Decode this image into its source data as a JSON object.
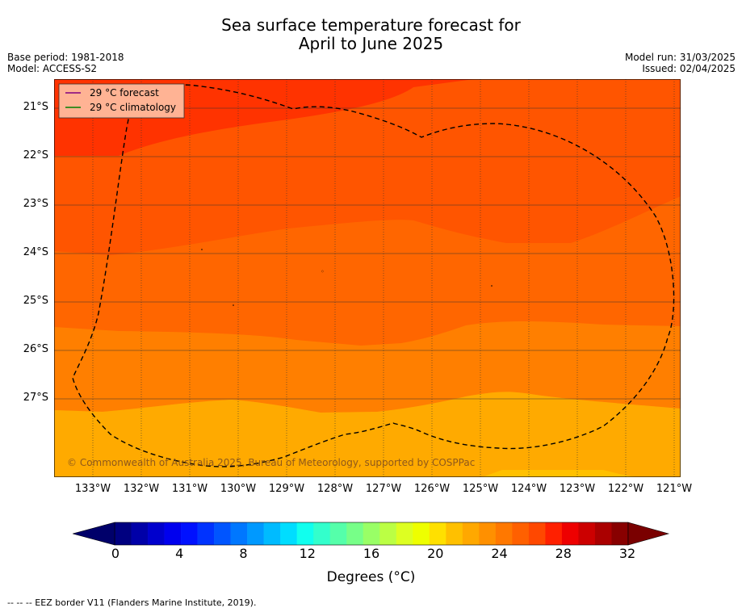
{
  "header": {
    "title_line1": "Sea surface temperature forecast for",
    "title_line2": "April to June 2025",
    "base_period": "Base period: 1981-2018",
    "model": "Model: ACCESS-S2",
    "model_run": "Model run: 31/03/2025",
    "issued": "Issued: 02/04/2025"
  },
  "map": {
    "latitude_labels": [
      "21°S",
      "22°S",
      "23°S",
      "24°S",
      "25°S",
      "26°S",
      "27°S"
    ],
    "longitude_labels": [
      "133°W",
      "132°W",
      "131°W",
      "130°W",
      "129°W",
      "128°W",
      "127°W",
      "126°W",
      "125°W",
      "124°W",
      "123°W",
      "122°W",
      "121°W"
    ],
    "copyright": "© Commonwealth of Australia 2025, Bureau of Meteorology, supported by COSPPac",
    "bands": [
      {
        "range": "28-29 °C",
        "color": "#ff3300"
      },
      {
        "range": "27-28 °C",
        "color": "#ff5500"
      },
      {
        "range": "26-27 °C",
        "color": "#ff6600"
      },
      {
        "range": "25-26 °C",
        "color": "#ff7f00"
      },
      {
        "range": "24-25 °C",
        "color": "#ff9400"
      },
      {
        "range": "23-24 °C",
        "color": "#ffaa00"
      },
      {
        "range": "22-23 °C",
        "color": "#ffc000"
      }
    ]
  },
  "legend": {
    "forecast_label": "29 °C  forecast",
    "forecast_color": "#800080",
    "climatology_label": "29 °C  climatology",
    "climatology_color": "#008000"
  },
  "colorbar": {
    "tick_labels": [
      "0",
      "4",
      "8",
      "12",
      "16",
      "20",
      "24",
      "28",
      "32"
    ],
    "unit_label": "Degrees (°C)",
    "colors": [
      "#000080",
      "#0000a8",
      "#0000cd",
      "#0000ee",
      "#0011ff",
      "#0033ff",
      "#0055ff",
      "#0077ff",
      "#0099ff",
      "#00bbff",
      "#00ddff",
      "#11ffee",
      "#33ffcc",
      "#55ffaa",
      "#77ff88",
      "#99ff66",
      "#bbff44",
      "#ddff22",
      "#eeff00",
      "#ffe000",
      "#ffc000",
      "#ffa800",
      "#ff9000",
      "#ff7800",
      "#ff6000",
      "#ff4800",
      "#ff2000",
      "#ee0000",
      "#cc0000",
      "#aa0000",
      "#880000"
    ],
    "low_extend_color": "#00006a",
    "high_extend_color": "#7a0000"
  },
  "footer": {
    "eez_note": "--  --  -- EEZ border V11 (Flanders Marine Institute, 2019)."
  }
}
